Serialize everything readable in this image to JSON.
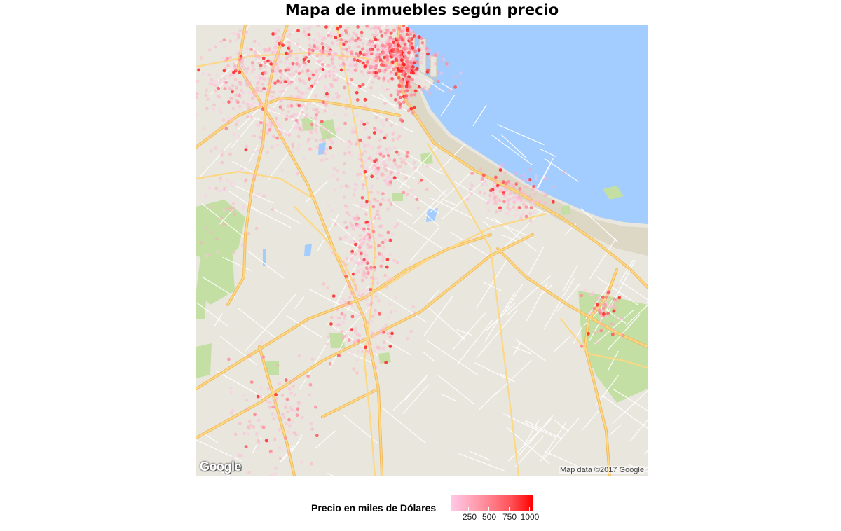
{
  "title": "Mapa de inmuebles según precio",
  "map": {
    "attribution": "Map data ©2017 Google",
    "logo_text": "Google",
    "colors": {
      "land": "#e9e6de",
      "water": "#a3ccff",
      "park": "#c3dfa3",
      "highway": "#fcd784",
      "highway_edge": "#f1b858",
      "street": "#ffffff",
      "shore": "#dcd6c4"
    }
  },
  "legend": {
    "title": "Precio en miles de Dólares",
    "ticks": [
      "250",
      "500",
      "750",
      "1000"
    ],
    "color_low": "#ffc8e6",
    "color_high": "#ff0000"
  }
}
